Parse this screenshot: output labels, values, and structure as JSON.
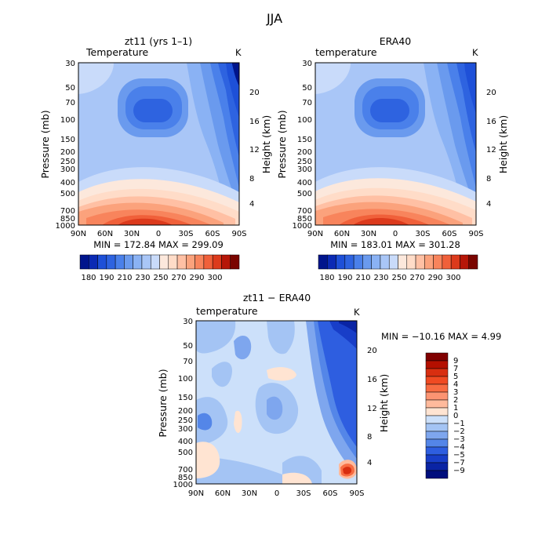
{
  "page_title": "JJA",
  "chart_data": [
    {
      "type": "heatmap",
      "title": "zt11 (yrs 1–1)",
      "subtitle": "Temperature",
      "units": "K",
      "ylabel": "Pressure (mb)",
      "ylabel_right": "Height (km)",
      "x_ticks": [
        "90N",
        "60N",
        "30N",
        "0",
        "30S",
        "60S",
        "90S"
      ],
      "y_ticks": [
        "30",
        "50",
        "70",
        "100",
        "150",
        "200",
        "250",
        "300",
        "400",
        "500",
        "700",
        "850",
        "1000"
      ],
      "height_ticks": [
        "20",
        "16",
        "12",
        "8",
        "4"
      ],
      "stats": "MIN = 172.84   MAX = 299.09",
      "colorbar_labels": [
        "180",
        "190",
        "210",
        "230",
        "250",
        "270",
        "290",
        "300"
      ],
      "shading": [
        {
          "color": "#2E63E0",
          "x": 80,
          "y": 100,
          "rx": 30,
          "ry": 20
        },
        {
          "color": "#1E50D8",
          "x": 85,
          "y": 60,
          "rx": 6,
          "ry": 40
        },
        {
          "color": "#FFDCC8",
          "x": 20,
          "y": 500,
          "rx": 45,
          "ry": 15
        },
        {
          "color": "#F0603A",
          "x": 20,
          "y": 850,
          "rx": 30,
          "ry": 15
        }
      ]
    },
    {
      "type": "heatmap",
      "title": "ERA40",
      "subtitle": "temperature",
      "units": "K",
      "ylabel": "Pressure (mb)",
      "ylabel_right": "Height (km)",
      "x_ticks": [
        "90N",
        "60N",
        "30N",
        "0",
        "30S",
        "60S",
        "90S"
      ],
      "y_ticks": [
        "30",
        "50",
        "70",
        "100",
        "150",
        "200",
        "250",
        "300",
        "400",
        "500",
        "700",
        "850",
        "1000"
      ],
      "height_ticks": [
        "20",
        "16",
        "12",
        "8",
        "4"
      ],
      "stats": "MIN = 183.01   MAX = 301.28",
      "colorbar_labels": [
        "180",
        "190",
        "210",
        "230",
        "250",
        "270",
        "290",
        "300"
      ]
    },
    {
      "type": "heatmap",
      "title": "zt11 − ERA40",
      "subtitle": "temperature",
      "units": "K",
      "ylabel": "Pressure (mb)",
      "ylabel_right": "Height (km)",
      "x_ticks": [
        "90N",
        "60N",
        "30N",
        "0",
        "30S",
        "60S",
        "90S"
      ],
      "y_ticks": [
        "30",
        "50",
        "70",
        "100",
        "150",
        "200",
        "250",
        "300",
        "400",
        "500",
        "700",
        "850",
        "1000"
      ],
      "height_ticks": [
        "20",
        "16",
        "12",
        "8",
        "4"
      ],
      "stats": "MIN = −10.16   MAX =    4.99",
      "colorbar_labels": [
        "9",
        "7",
        "5",
        "4",
        "3",
        "2",
        "1",
        "0",
        "−1",
        "−2",
        "−3",
        "−4",
        "−5",
        "−7",
        "−9"
      ]
    }
  ],
  "colors": {
    "temp_scale": [
      "#00158C",
      "#0B2AB4",
      "#1E50D8",
      "#2E63E0",
      "#4A80EA",
      "#6A9AEE",
      "#8AB2F4",
      "#A9C6F7",
      "#C9DBFA",
      "#FCE8DC",
      "#FFDCC8",
      "#FFC0A4",
      "#FBA27C",
      "#F8845C",
      "#F0603A",
      "#DC3A1C",
      "#B61608",
      "#7A0500"
    ],
    "diff_scale": [
      "#800000",
      "#B40F00",
      "#D82E10",
      "#F04A22",
      "#F86C42",
      "#FC9472",
      "#FFBA9C",
      "#FFE4D2",
      "#CCE0FA",
      "#A4C4F4",
      "#7EA6EE",
      "#5486E8",
      "#2E5EE0",
      "#183EC8",
      "#0A24A4",
      "#000E7C"
    ]
  }
}
